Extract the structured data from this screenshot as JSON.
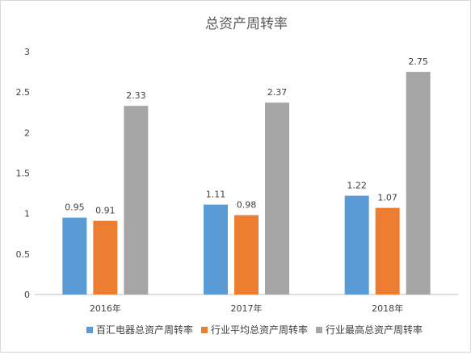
{
  "chart_data": {
    "type": "bar",
    "title": "总资产周转率",
    "categories": [
      "2016年",
      "2017年",
      "2018年"
    ],
    "series": [
      {
        "name": "百汇电器总资产周转率",
        "values": [
          0.95,
          1.11,
          1.22
        ],
        "color": "#5b9bd5"
      },
      {
        "name": "行业平均总资产周转率",
        "values": [
          0.91,
          0.98,
          1.07
        ],
        "color": "#ed7d31"
      },
      {
        "name": "行业最高总资产周转率",
        "values": [
          2.33,
          2.37,
          2.75
        ],
        "color": "#a5a5a5"
      }
    ],
    "yticks": [
      "0",
      "0.5",
      "1",
      "1.5",
      "2",
      "2.5",
      "3"
    ],
    "ylim": [
      0,
      3
    ],
    "grid": false,
    "legend_position": "bottom",
    "xlabel": "",
    "ylabel": ""
  }
}
